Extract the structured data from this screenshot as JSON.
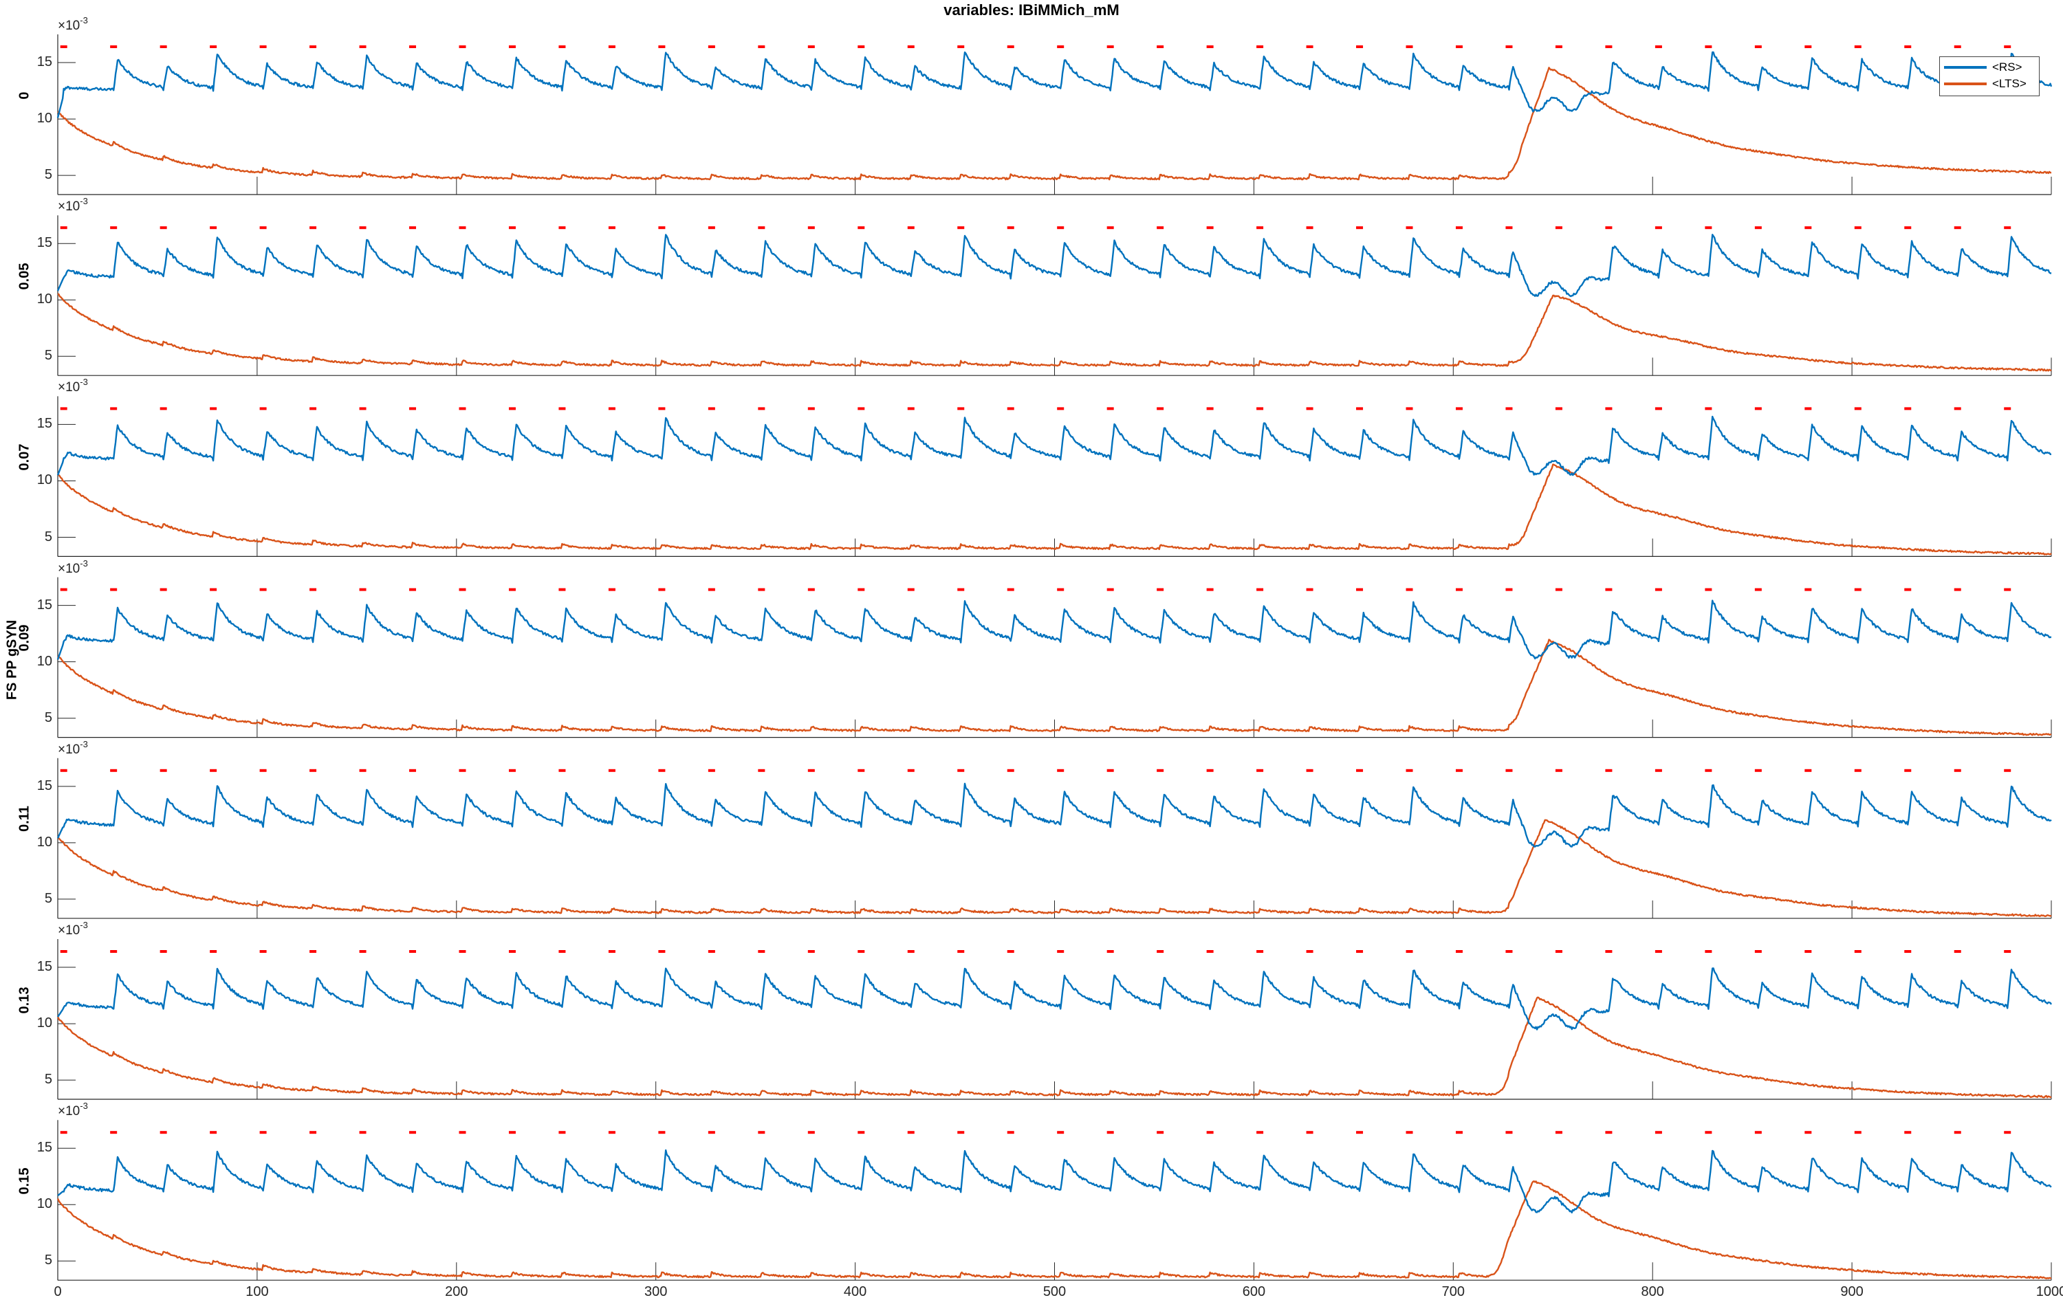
{
  "chart_data": {
    "type": "line",
    "title": "variables: IBiMMich_mM",
    "ylabel": "FS PP gSYN",
    "xlim": [
      0,
      1000
    ],
    "x_ticks": [
      "0",
      "100",
      "200",
      "300",
      "400",
      "500",
      "600",
      "700",
      "800",
      "900",
      "1000"
    ],
    "y_ticks": [
      "5",
      "10",
      "15"
    ],
    "y_exponent_label": "×10",
    "y_exponent": "-3",
    "ylim": [
      3.3,
      17.5
    ],
    "legend": {
      "position": "top-right",
      "entries": [
        {
          "label": "<RS>",
          "color": "#0072BD"
        },
        {
          "label": "<LTS>",
          "color": "#D95319"
        }
      ]
    },
    "colors": {
      "rs": "#0072BD",
      "lts": "#D95319",
      "stimulus_markers": "#FF0000"
    },
    "stimulus_marker_times": [
      3,
      28,
      53,
      78,
      103,
      128,
      153,
      178,
      203,
      228,
      253,
      278,
      303,
      328,
      353,
      378,
      403,
      428,
      453,
      478,
      503,
      528,
      553,
      578,
      603,
      628,
      653,
      678,
      703,
      728,
      753,
      778,
      803,
      828,
      853,
      878,
      903,
      928,
      953,
      978
    ],
    "panels": [
      {
        "label": "0",
        "rs": {
          "start": 10.1,
          "peak": 15.6,
          "trough": 12.6,
          "onset": [
            728,
            742
          ],
          "dip": 11.3,
          "end": 12.4
        },
        "lts": {
          "start": 10.1,
          "base": 4.7,
          "burst": [
            735,
            748
          ],
          "peak": 14.5,
          "end": 5.0
        }
      },
      {
        "label": "0.05",
        "rs": {
          "start": 10.8,
          "peak": 15.4,
          "trough": 12.0,
          "onset": [
            728,
            742
          ],
          "dip": 11.0,
          "end": 11.9
        },
        "lts": {
          "start": 10.0,
          "base": 4.2,
          "burst": [
            738,
            750
          ],
          "peak": 10.4,
          "end": 3.6
        }
      },
      {
        "label": "0.07",
        "rs": {
          "start": 10.5,
          "peak": 15.2,
          "trough": 11.9,
          "onset": [
            728,
            742
          ],
          "dip": 11.2,
          "end": 11.6
        },
        "lts": {
          "start": 10.0,
          "base": 4.0,
          "burst": [
            738,
            750
          ],
          "peak": 11.4,
          "end": 3.3
        }
      },
      {
        "label": "0.09",
        "rs": {
          "start": 10.2,
          "peak": 15.0,
          "trough": 11.8,
          "onset": [
            728,
            742
          ],
          "dip": 11.0,
          "end": 11.3
        },
        "lts": {
          "start": 10.0,
          "base": 3.9,
          "burst": [
            735,
            748
          ],
          "peak": 11.9,
          "end": 3.3
        }
      },
      {
        "label": "0.11",
        "rs": {
          "start": 10.4,
          "peak": 14.8,
          "trough": 11.5,
          "onset": [
            728,
            742
          ],
          "dip": 10.3,
          "end": 11.2
        },
        "lts": {
          "start": 10.0,
          "base": 3.8,
          "burst": [
            733,
            746
          ],
          "peak": 12.0,
          "end": 3.3
        }
      },
      {
        "label": "0.13",
        "rs": {
          "start": 10.6,
          "peak": 14.6,
          "trough": 11.4,
          "onset": [
            728,
            742
          ],
          "dip": 10.2,
          "end": 11.1
        },
        "lts": {
          "start": 10.0,
          "base": 3.7,
          "burst": [
            730,
            742
          ],
          "peak": 12.3,
          "end": 3.3
        }
      },
      {
        "label": "0.15",
        "rs": {
          "start": 10.8,
          "peak": 14.4,
          "trough": 11.2,
          "onset": [
            728,
            742
          ],
          "dip": 10.0,
          "end": 11.0
        },
        "lts": {
          "start": 9.9,
          "base": 3.6,
          "burst": [
            727,
            740
          ],
          "peak": 12.1,
          "end": 3.3
        }
      }
    ]
  }
}
